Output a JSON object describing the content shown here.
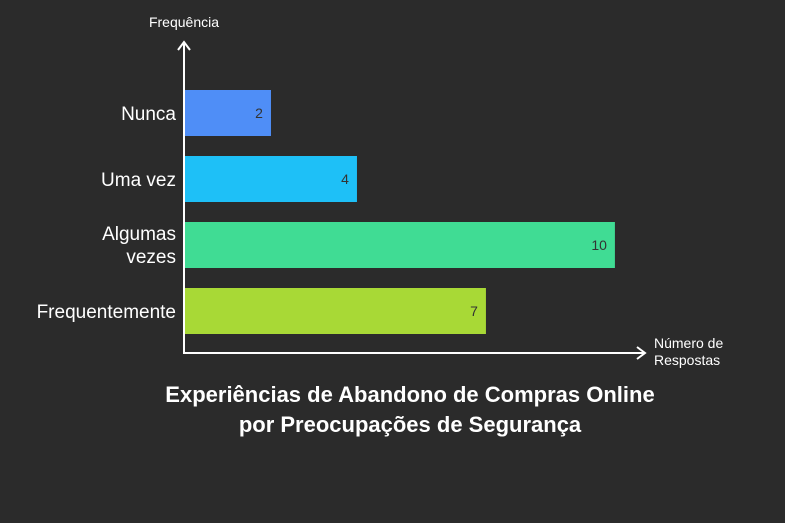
{
  "chart_data": {
    "type": "bar",
    "orientation": "horizontal",
    "title": "Experiências de Abandono de Compras Online por Preocupações de Segurança",
    "ylabel": "Frequência",
    "xlabel": "Número de Respostas",
    "categories": [
      "Nunca",
      "Uma vez",
      "Algumas vezes",
      "Frequentemente"
    ],
    "values": [
      2,
      4,
      10,
      7
    ],
    "colors": [
      "#4f8ef7",
      "#1ec0f7",
      "#40dc94",
      "#a8d936"
    ],
    "xlim": [
      0,
      10.7
    ],
    "grid": false
  }
}
